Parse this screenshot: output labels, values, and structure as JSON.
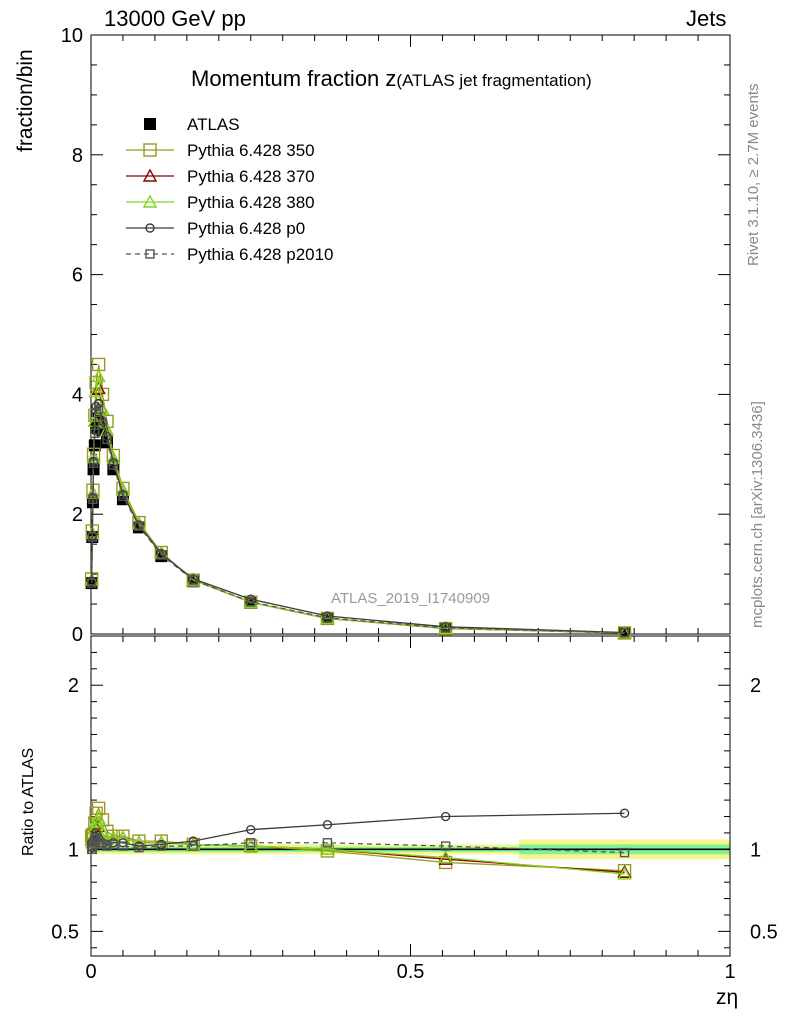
{
  "header": {
    "energy_label": "13000 GeV pp",
    "category_label": "Jets"
  },
  "side_text": {
    "rivet": "Rivet 3.1.10, ≥ 2.7M events",
    "source": "mcplots.cern.ch [arXiv:1306.3436]"
  },
  "chart_data": [
    {
      "type": "line",
      "panel": "main",
      "title": "Momentum fraction z",
      "title_suffix": "(ATLAS jet fragmentation)",
      "ylabel": "fraction/bin",
      "watermark": "ATLAS_2019_I1740909",
      "xlim": [
        0,
        1
      ],
      "ylim": [
        0,
        10
      ],
      "yticks": [
        0,
        2,
        4,
        6,
        8,
        10
      ],
      "legend_position": "top-left",
      "series": [
        {
          "name": "ATLAS",
          "color": "#000000",
          "marker": "filled-square",
          "x": [
            0.001,
            0.002,
            0.003,
            0.004,
            0.006,
            0.008,
            0.012,
            0.018,
            0.025,
            0.035,
            0.05,
            0.075,
            0.11,
            0.16,
            0.25,
            0.37,
            0.555,
            0.835
          ],
          "y": [
            0.85,
            1.62,
            2.2,
            2.75,
            3.15,
            3.45,
            3.6,
            3.4,
            3.2,
            2.75,
            2.25,
            1.78,
            1.3,
            0.88,
            0.52,
            0.26,
            0.1,
            0.02
          ]
        },
        {
          "name": "Pythia 6.428 350",
          "color": "#9a9a20",
          "marker": "open-square",
          "x": [
            0.001,
            0.002,
            0.003,
            0.004,
            0.006,
            0.008,
            0.012,
            0.018,
            0.025,
            0.035,
            0.05,
            0.075,
            0.11,
            0.16,
            0.25,
            0.37,
            0.555,
            0.835
          ],
          "y": [
            0.92,
            1.72,
            2.4,
            3.0,
            3.65,
            4.2,
            4.5,
            4.0,
            3.55,
            2.98,
            2.43,
            1.86,
            1.36,
            0.9,
            0.53,
            0.26,
            0.09,
            0.017
          ]
        },
        {
          "name": "Pythia 6.428 370",
          "color": "#8b0000",
          "marker": "open-triangle",
          "x": [
            0.001,
            0.002,
            0.003,
            0.004,
            0.006,
            0.008,
            0.012,
            0.018,
            0.025,
            0.035,
            0.05,
            0.075,
            0.11,
            0.16,
            0.25,
            0.37,
            0.555,
            0.835
          ],
          "y": [
            0.9,
            1.68,
            2.35,
            2.95,
            3.55,
            4.05,
            4.1,
            3.75,
            3.4,
            2.93,
            2.4,
            1.84,
            1.35,
            0.9,
            0.53,
            0.26,
            0.094,
            0.017
          ]
        },
        {
          "name": "Pythia 6.428 380",
          "color": "#7fd81c",
          "marker": "open-triangle",
          "x": [
            0.001,
            0.002,
            0.003,
            0.004,
            0.006,
            0.008,
            0.012,
            0.018,
            0.025,
            0.035,
            0.05,
            0.075,
            0.11,
            0.16,
            0.25,
            0.37,
            0.555,
            0.835
          ],
          "y": [
            0.9,
            1.68,
            2.35,
            2.95,
            3.55,
            4.05,
            4.3,
            3.75,
            3.4,
            2.93,
            2.4,
            1.84,
            1.35,
            0.9,
            0.53,
            0.26,
            0.095,
            0.017
          ]
        },
        {
          "name": "Pythia 6.428 p0",
          "color": "#3a3a3a",
          "marker": "open-circle",
          "x": [
            0.001,
            0.002,
            0.003,
            0.004,
            0.006,
            0.008,
            0.012,
            0.018,
            0.025,
            0.035,
            0.05,
            0.075,
            0.11,
            0.16,
            0.25,
            0.37,
            0.555,
            0.835
          ],
          "y": [
            0.88,
            1.64,
            2.28,
            2.88,
            3.4,
            3.8,
            3.85,
            3.55,
            3.3,
            2.86,
            2.33,
            1.82,
            1.34,
            0.92,
            0.58,
            0.3,
            0.12,
            0.025
          ]
        },
        {
          "name": "Pythia 6.428 p2010",
          "color": "#555555",
          "marker": "open-square-dashed",
          "x": [
            0.001,
            0.002,
            0.003,
            0.004,
            0.006,
            0.008,
            0.012,
            0.018,
            0.025,
            0.035,
            0.05,
            0.075,
            0.11,
            0.16,
            0.25,
            0.37,
            0.555,
            0.835
          ],
          "y": [
            0.85,
            1.62,
            2.25,
            2.85,
            3.35,
            3.7,
            3.75,
            3.5,
            3.25,
            2.82,
            2.3,
            1.8,
            1.32,
            0.9,
            0.54,
            0.27,
            0.102,
            0.02
          ]
        }
      ]
    },
    {
      "type": "line",
      "panel": "ratio",
      "ylabel": "Ratio to ATLAS",
      "xlabel": "zη",
      "xlim": [
        0,
        1
      ],
      "ylim": [
        0.35,
        2.3
      ],
      "xticks": [
        0,
        0.5,
        1
      ],
      "xtick_labels": [
        "0",
        "0.5",
        "1"
      ],
      "yticks": [
        0.5,
        1,
        2
      ],
      "ytick_labels": [
        "0.5",
        "1",
        "2"
      ],
      "uncertainty_bands": [
        {
          "x": [
            0,
            0.67
          ],
          "inner": [
            0.985,
            1.015
          ],
          "outer": [
            0.97,
            1.03
          ]
        },
        {
          "x": [
            0.67,
            1.0
          ],
          "inner": [
            0.97,
            1.03
          ],
          "outer": [
            0.94,
            1.06
          ]
        }
      ],
      "series": [
        {
          "name": "Pythia 6.428 350",
          "color": "#9a9a20",
          "marker": "open-square",
          "x": [
            0.001,
            0.002,
            0.003,
            0.004,
            0.006,
            0.008,
            0.012,
            0.018,
            0.025,
            0.035,
            0.05,
            0.075,
            0.11,
            0.16,
            0.25,
            0.37,
            0.555,
            0.835
          ],
          "y": [
            1.08,
            1.06,
            1.09,
            1.09,
            1.16,
            1.22,
            1.25,
            1.18,
            1.11,
            1.08,
            1.08,
            1.05,
            1.05,
            1.03,
            1.02,
            0.99,
            0.92,
            0.87
          ]
        },
        {
          "name": "Pythia 6.428 370",
          "color": "#8b0000",
          "marker": "open-triangle",
          "x": [
            0.001,
            0.002,
            0.003,
            0.004,
            0.006,
            0.008,
            0.012,
            0.018,
            0.025,
            0.035,
            0.05,
            0.075,
            0.11,
            0.16,
            0.25,
            0.37,
            0.555,
            0.835
          ],
          "y": [
            1.06,
            1.04,
            1.07,
            1.07,
            1.13,
            1.17,
            1.14,
            1.1,
            1.06,
            1.07,
            1.07,
            1.04,
            1.04,
            1.03,
            1.02,
            1.0,
            0.94,
            0.86
          ]
        },
        {
          "name": "Pythia 6.428 380",
          "color": "#7fd81c",
          "marker": "open-triangle",
          "x": [
            0.001,
            0.002,
            0.003,
            0.004,
            0.006,
            0.008,
            0.012,
            0.018,
            0.025,
            0.035,
            0.05,
            0.075,
            0.11,
            0.16,
            0.25,
            0.37,
            0.555,
            0.835
          ],
          "y": [
            1.06,
            1.04,
            1.07,
            1.07,
            1.13,
            1.17,
            1.19,
            1.1,
            1.06,
            1.07,
            1.07,
            1.04,
            1.04,
            1.03,
            1.02,
            1.0,
            0.95,
            0.85
          ]
        },
        {
          "name": "Pythia 6.428 p0",
          "color": "#3a3a3a",
          "marker": "open-circle",
          "x": [
            0.001,
            0.002,
            0.003,
            0.004,
            0.006,
            0.008,
            0.012,
            0.018,
            0.025,
            0.035,
            0.05,
            0.075,
            0.11,
            0.16,
            0.25,
            0.37,
            0.555,
            0.835
          ],
          "y": [
            1.04,
            1.01,
            1.04,
            1.05,
            1.08,
            1.1,
            1.07,
            1.04,
            1.03,
            1.04,
            1.04,
            1.02,
            1.03,
            1.05,
            1.12,
            1.15,
            1.2,
            1.22
          ]
        },
        {
          "name": "Pythia 6.428 p2010",
          "color": "#555555",
          "marker": "open-square-dashed",
          "x": [
            0.001,
            0.002,
            0.003,
            0.004,
            0.006,
            0.008,
            0.012,
            0.018,
            0.025,
            0.035,
            0.05,
            0.075,
            0.11,
            0.16,
            0.25,
            0.37,
            0.555,
            0.835
          ],
          "y": [
            1.0,
            1.0,
            1.02,
            1.04,
            1.06,
            1.07,
            1.04,
            1.03,
            1.02,
            1.03,
            1.02,
            1.01,
            1.02,
            1.02,
            1.04,
            1.04,
            1.02,
            0.98
          ]
        }
      ]
    }
  ]
}
